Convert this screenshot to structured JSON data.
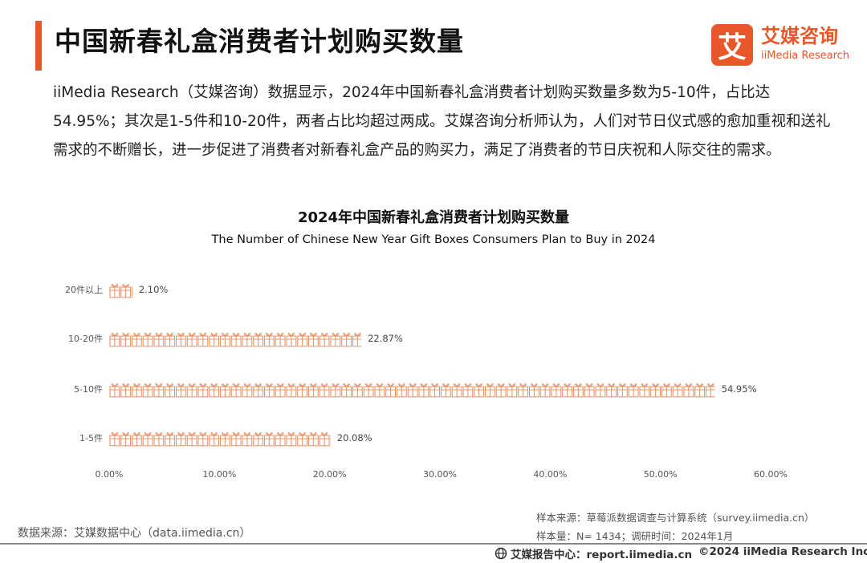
{
  "header": {
    "title": "中国新春礼盒消费者计划购买数量",
    "accent_color": "#e8572a"
  },
  "logo": {
    "mark": "艾",
    "name_cn": "艾媒咨询",
    "name_en": "iiMedia Research"
  },
  "intro": "iiMedia Research（艾媒咨询）数据显示，2024年中国新春礼盒消费者计划购买数量多数为5-10件，占比达54.95%；其次是1-5件和10-20件，两者占比均超过两成。艾媒咨询分析师认为，人们对节日仪式感的愈加重视和送礼需求的不断赠长，进一步促进了消费者对新春礼盒产品的购买力，满足了消费者的节日庆祝和人际交往的需求。",
  "chart_data": {
    "type": "bar",
    "orientation": "horizontal",
    "pictogram": "gift-box-icon",
    "title": "2024年中国新春礼盒消费者计划购买数量",
    "subtitle": "The Number of Chinese New Year Gift Boxes Consumers Plan to Buy in 2024",
    "categories": [
      "20件以上",
      "10-20件",
      "5-10件",
      "1-5件"
    ],
    "values": [
      2.1,
      22.87,
      54.95,
      20.08
    ],
    "value_labels": [
      "2.10%",
      "22.87%",
      "54.95%",
      "20.08%"
    ],
    "xlim": [
      0,
      60
    ],
    "x_ticks": [
      "0.00%",
      "10.00%",
      "20.00%",
      "30.00%",
      "40.00%",
      "50.00%",
      "60.00%"
    ],
    "grid": false,
    "bar_color": "#e8956a"
  },
  "sources": {
    "left": "数据来源：艾媒数据中心（data.iimedia.cn）",
    "right_1": "样本来源：草莓派数据调查与计算系统（survey.iimedia.cn）",
    "right_2": "样本量：N= 1434；调研时间：2024年1月"
  },
  "footer": {
    "left": "艾媒报告中心：report.iimedia.cn",
    "right": "©2024  iiMedia Research  Inc"
  }
}
